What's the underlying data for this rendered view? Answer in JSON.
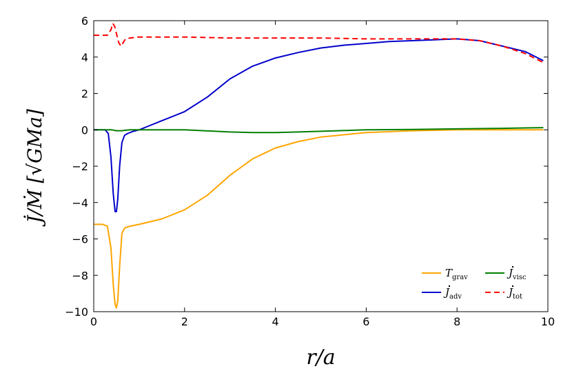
{
  "chart_data": {
    "type": "line",
    "xlabel": "r/a",
    "ylabel": "J̇/Ṁ  [√GMa]",
    "xlim": [
      0,
      10
    ],
    "ylim": [
      -10,
      6
    ],
    "xticks": [
      0,
      2,
      4,
      6,
      8,
      10
    ],
    "yticks": [
      -10,
      -8,
      -6,
      -4,
      -2,
      0,
      2,
      4,
      6
    ],
    "xtick_labels": [
      "0",
      "2",
      "4",
      "6",
      "8",
      "10"
    ],
    "ytick_labels": [
      "−10",
      "−8",
      "−6",
      "−4",
      "−2",
      "0",
      "2",
      "4",
      "6"
    ],
    "grid": false,
    "legend_position": "lower-right",
    "series": [
      {
        "name": "T_grav",
        "legend_main": "T",
        "legend_sub": "grav",
        "legend_dot": false,
        "color": "#FFA500",
        "style": "solid",
        "x": [
          0,
          0.2,
          0.3,
          0.38,
          0.43,
          0.47,
          0.5,
          0.53,
          0.57,
          0.62,
          0.68,
          0.8,
          1.0,
          1.5,
          2.0,
          2.5,
          3.0,
          3.5,
          4.0,
          4.5,
          5.0,
          6.0,
          7.0,
          8.0,
          9.0,
          9.9
        ],
        "y": [
          -5.2,
          -5.2,
          -5.3,
          -6.5,
          -8.5,
          -9.6,
          -9.8,
          -9.4,
          -7.5,
          -5.7,
          -5.4,
          -5.3,
          -5.2,
          -4.9,
          -4.4,
          -3.6,
          -2.5,
          -1.6,
          -1.0,
          -0.65,
          -0.4,
          -0.15,
          -0.05,
          0.0,
          0.0,
          0.0
        ]
      },
      {
        "name": "J_adv",
        "legend_main": "J",
        "legend_sub": "adv",
        "legend_dot": true,
        "color": "#0000CC",
        "style": "solid",
        "x": [
          0,
          0.25,
          0.32,
          0.38,
          0.43,
          0.47,
          0.5,
          0.53,
          0.57,
          0.62,
          0.68,
          0.75,
          0.85,
          1.0,
          1.2,
          1.5,
          2.0,
          2.5,
          3.0,
          3.5,
          4.0,
          4.5,
          5.0,
          5.5,
          6.0,
          6.5,
          7.0,
          7.5,
          8.0,
          8.5,
          9.0,
          9.5,
          9.9
        ],
        "y": [
          0.0,
          0.0,
          -0.2,
          -1.5,
          -3.5,
          -4.5,
          -4.5,
          -3.8,
          -2.0,
          -0.7,
          -0.3,
          -0.2,
          -0.1,
          0.0,
          0.2,
          0.5,
          1.0,
          1.8,
          2.8,
          3.5,
          3.95,
          4.25,
          4.5,
          4.65,
          4.75,
          4.85,
          4.9,
          4.95,
          5.0,
          4.9,
          4.6,
          4.3,
          3.8
        ]
      },
      {
        "name": "J_visc",
        "legend_main": "J",
        "legend_sub": "visc",
        "legend_dot": true,
        "color": "#007F00",
        "style": "solid",
        "x": [
          0,
          0.4,
          0.5,
          0.6,
          0.8,
          1.0,
          2.0,
          3.0,
          3.5,
          4.0,
          4.5,
          5.0,
          6.0,
          7.0,
          8.0,
          9.0,
          9.9
        ],
        "y": [
          0.0,
          0.0,
          -0.05,
          -0.05,
          0.0,
          0.0,
          0.0,
          -0.12,
          -0.15,
          -0.15,
          -0.12,
          -0.08,
          0.0,
          0.02,
          0.05,
          0.08,
          0.12
        ]
      },
      {
        "name": "J_tot",
        "legend_main": "J",
        "legend_sub": "tot",
        "legend_dot": true,
        "color": "#FF0000",
        "style": "dashed",
        "x": [
          0,
          0.3,
          0.38,
          0.42,
          0.46,
          0.5,
          0.55,
          0.6,
          0.65,
          0.7,
          0.8,
          1.0,
          2.0,
          3.0,
          4.0,
          5.0,
          6.0,
          7.0,
          8.0,
          8.5,
          9.0,
          9.5,
          9.9
        ],
        "y": [
          5.2,
          5.2,
          5.5,
          5.85,
          5.7,
          5.3,
          4.8,
          4.6,
          4.8,
          5.0,
          5.05,
          5.1,
          5.1,
          5.05,
          5.05,
          5.05,
          5.0,
          5.0,
          5.0,
          4.9,
          4.6,
          4.2,
          3.7
        ]
      }
    ]
  }
}
